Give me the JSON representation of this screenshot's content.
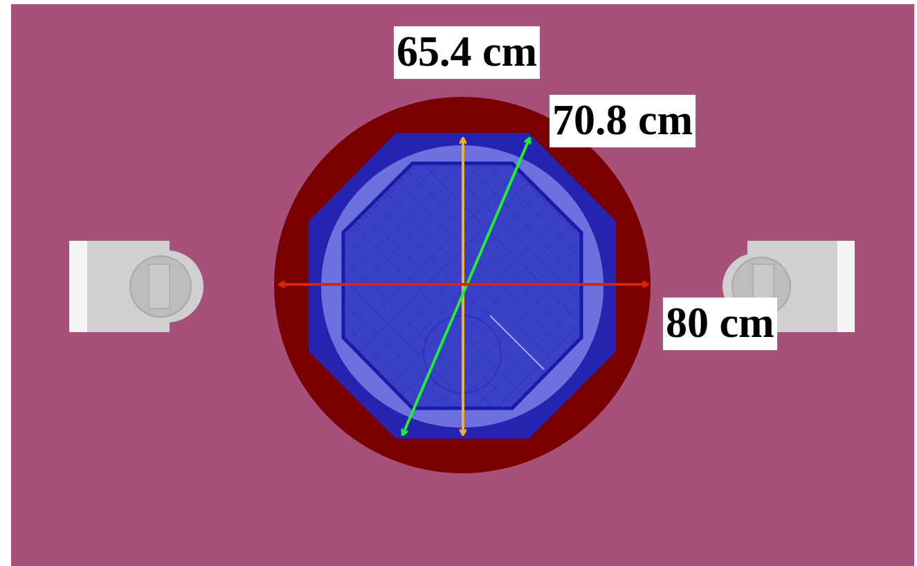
{
  "labels": {
    "height": "65.4 cm",
    "diagonal": "70.8 cm",
    "width": "80 cm"
  },
  "colors": {
    "background": "#a7507c",
    "outer_ring": "#7a0000",
    "octagon": "#2424b0",
    "inner_disc": "#6e70e0",
    "inner_octagon": "#3a40c8",
    "side_block": "#d8d8d8",
    "arrow_height": "#f0b030",
    "arrow_diagonal": "#22ee33",
    "arrow_width": "#dd2200"
  }
}
